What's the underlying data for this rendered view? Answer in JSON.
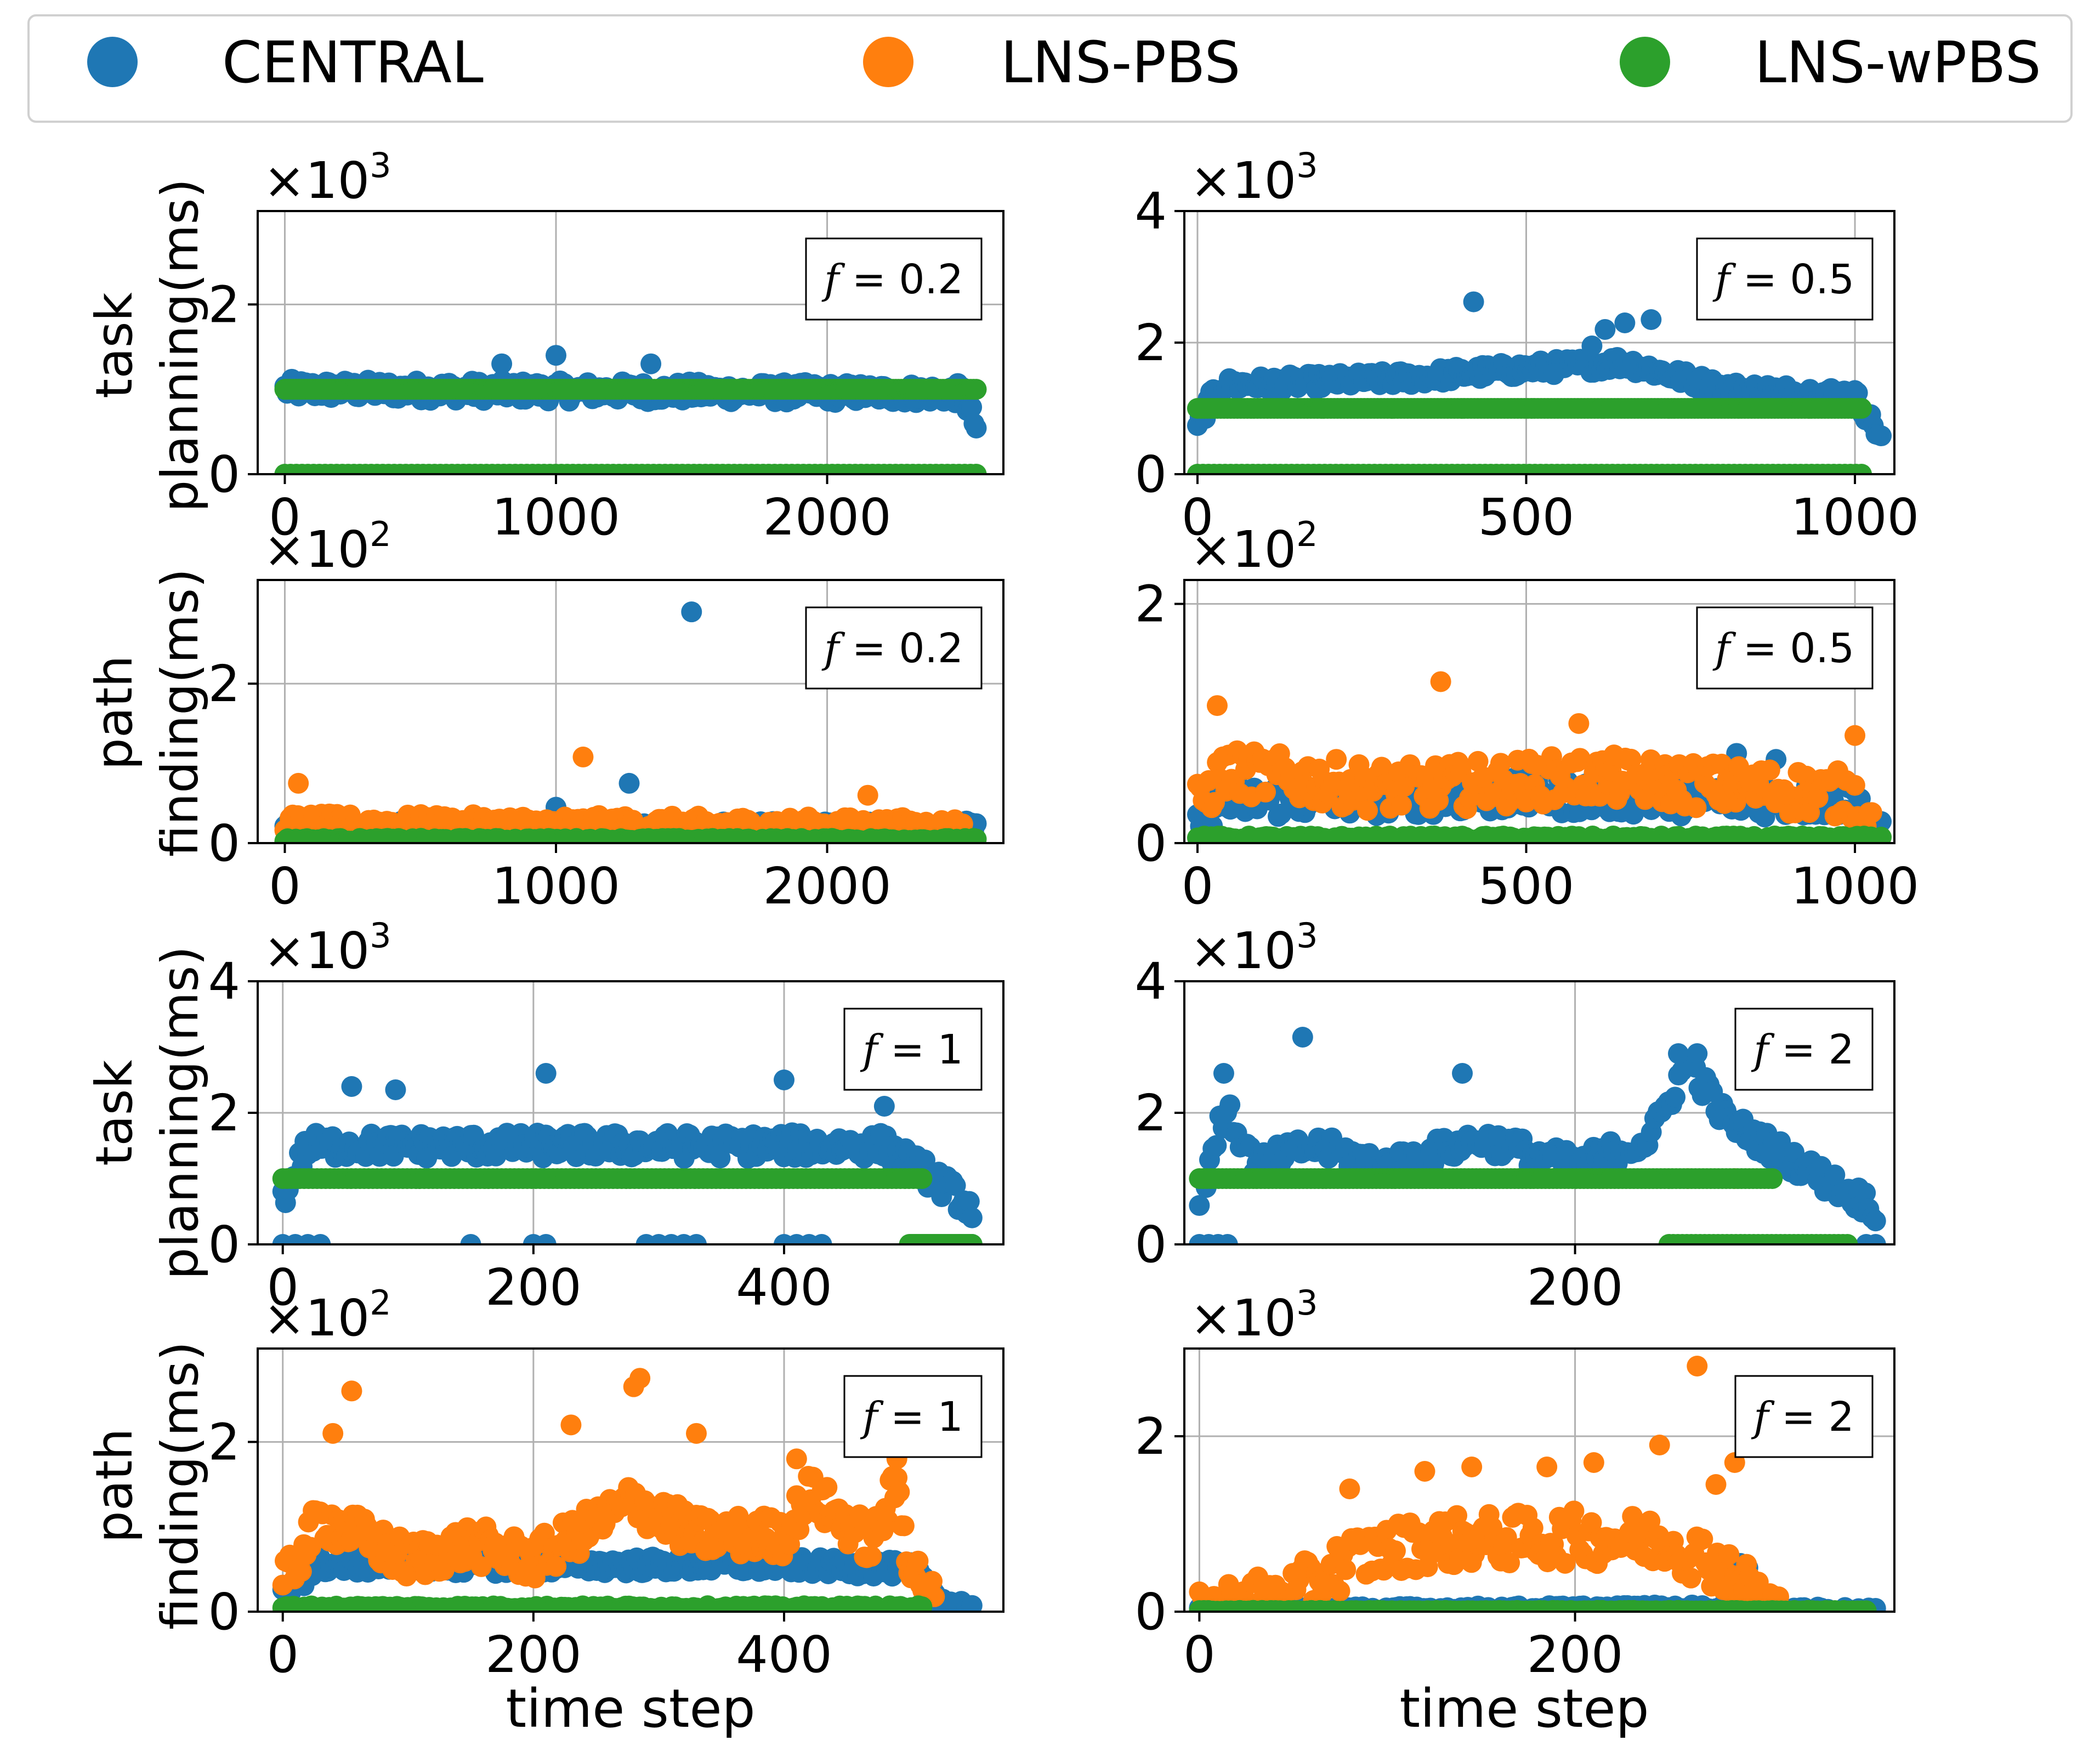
{
  "colors": {
    "central": "#1f77b4",
    "lns_pbs": "#ff7f0e",
    "lns_wpbs": "#2ca02c",
    "grid": "#b0b0b0",
    "frame": "#000000"
  },
  "legend": {
    "items": [
      {
        "label": "CENTRAL",
        "color": "#1f77b4"
      },
      {
        "label": "LNS-PBS",
        "color": "#ff7f0e"
      },
      {
        "label": "LNS-wPBS",
        "color": "#2ca02c"
      }
    ]
  },
  "rows": [
    {
      "ylabel_lines": [
        "task",
        "planning(ms)"
      ]
    },
    {
      "ylabel_lines": [
        "path",
        "finding(ms)"
      ]
    },
    {
      "ylabel_lines": [
        "task",
        "planning(ms)"
      ]
    },
    {
      "ylabel_lines": [
        "path",
        "finding(ms)"
      ]
    }
  ],
  "xlabel": "time step",
  "chart_data": [
    {
      "type": "scatter",
      "metric": "task planning (ms)",
      "annotation": "f = 0.2",
      "multiplier_base": "×10",
      "multiplier_exp": "3",
      "xlim": [
        -100,
        2650
      ],
      "xticks": [
        0,
        1000,
        2000
      ],
      "ylim": [
        0,
        3.1
      ],
      "yticks": [
        0,
        2
      ],
      "series": [
        {
          "name": "CENTRAL",
          "x_max": 2550,
          "trend": [
            [
              0,
              1.0
            ],
            [
              2500,
              0.95
            ],
            [
              2550,
              0.55
            ]
          ],
          "spread": 0.12,
          "points": 300,
          "outliers": [
            [
              1000,
              1.4
            ],
            [
              800,
              1.3
            ],
            [
              1350,
              1.3
            ]
          ]
        },
        {
          "name": "LNS-PBS",
          "x_max": 2550,
          "trend": [
            [
              0,
              1.0
            ],
            [
              2550,
              1.0
            ]
          ],
          "spread": 0.0,
          "points": 0
        },
        {
          "name": "LNS-wPBS",
          "x_max": 2550,
          "trend": [
            [
              0,
              1.0
            ],
            [
              2550,
              1.0
            ]
          ],
          "spread": 0.0,
          "points": 250,
          "zero_band": true
        }
      ]
    },
    {
      "type": "scatter",
      "metric": "task planning (ms)",
      "annotation": "f = 0.5",
      "multiplier_base": "×10",
      "multiplier_exp": "3",
      "xlim": [
        -20,
        1060
      ],
      "xticks": [
        0,
        500,
        1000
      ],
      "ylim": [
        0,
        4
      ],
      "yticks": [
        0,
        2,
        4
      ],
      "series": [
        {
          "name": "CENTRAL",
          "x_max": 1040,
          "trend": [
            [
              0,
              0.7
            ],
            [
              30,
              1.35
            ],
            [
              300,
              1.45
            ],
            [
              500,
              1.6
            ],
            [
              650,
              1.7
            ],
            [
              800,
              1.3
            ],
            [
              1000,
              1.2
            ],
            [
              1040,
              0.55
            ]
          ],
          "spread": 0.12,
          "points": 260,
          "outliers": [
            [
              420,
              2.62
            ],
            [
              650,
              2.3
            ],
            [
              690,
              2.35
            ],
            [
              620,
              2.2
            ],
            [
              600,
              1.95
            ]
          ]
        },
        {
          "name": "LNS-PBS",
          "x_max": 1040,
          "trend": [
            [
              0,
              1.0
            ],
            [
              1040,
              1.0
            ]
          ],
          "spread": 0.0,
          "points": 0
        },
        {
          "name": "LNS-wPBS",
          "x_max": 1010,
          "trend": [
            [
              0,
              1.0
            ],
            [
              1010,
              1.0
            ]
          ],
          "spread": 0.0,
          "points": 200,
          "zero_band": true
        }
      ]
    },
    {
      "type": "scatter",
      "metric": "path finding (ms)",
      "annotation": "f = 0.2",
      "multiplier_base": "×10",
      "multiplier_exp": "2",
      "xlim": [
        -100,
        2650
      ],
      "xticks": [
        0,
        1000,
        2000
      ],
      "ylim": [
        0,
        3.3
      ],
      "yticks": [
        0,
        2
      ],
      "series": [
        {
          "name": "CENTRAL",
          "x_max": 2550,
          "trend": [
            [
              0,
              0.2
            ],
            [
              2550,
              0.2
            ]
          ],
          "spread": 0.08,
          "points": 280,
          "outliers": [
            [
              1500,
              2.9
            ],
            [
              1270,
              0.75
            ],
            [
              1000,
              0.45
            ]
          ]
        },
        {
          "name": "LNS-PBS",
          "x_max": 2500,
          "trend": [
            [
              0,
              0.25
            ],
            [
              2500,
              0.2
            ]
          ],
          "spread": 0.12,
          "points": 260,
          "outliers": [
            [
              1100,
              1.08
            ],
            [
              50,
              0.75
            ],
            [
              2150,
              0.6
            ]
          ]
        },
        {
          "name": "LNS-wPBS",
          "x_max": 2550,
          "trend": [
            [
              0,
              0.04
            ],
            [
              2550,
              0.04
            ]
          ],
          "spread": 0.02,
          "points": 250
        }
      ]
    },
    {
      "type": "scatter",
      "metric": "path finding (ms)",
      "annotation": "f = 0.5",
      "multiplier_base": "×10",
      "multiplier_exp": "2",
      "xlim": [
        -20,
        1060
      ],
      "xticks": [
        0,
        500,
        1000
      ],
      "ylim": [
        0,
        2.2
      ],
      "yticks": [
        0,
        2
      ],
      "series": [
        {
          "name": "CENTRAL",
          "x_max": 1040,
          "trend": [
            [
              0,
              0.2
            ],
            [
              50,
              0.35
            ],
            [
              500,
              0.4
            ],
            [
              1000,
              0.35
            ],
            [
              1040,
              0.1
            ]
          ],
          "spread": 0.15,
          "points": 230,
          "outliers": [
            [
              820,
              0.75
            ],
            [
              880,
              0.7
            ]
          ]
        },
        {
          "name": "LNS-PBS",
          "x_max": 1030,
          "trend": [
            [
              0,
              0.3
            ],
            [
              40,
              0.6
            ],
            [
              300,
              0.45
            ],
            [
              600,
              0.55
            ],
            [
              1000,
              0.4
            ],
            [
              1030,
              0.1
            ]
          ],
          "spread": 0.2,
          "points": 240,
          "outliers": [
            [
              370,
              1.35
            ],
            [
              30,
              1.15
            ],
            [
              580,
              1.0
            ],
            [
              1000,
              0.9
            ]
          ]
        },
        {
          "name": "LNS-wPBS",
          "x_max": 1040,
          "trend": [
            [
              0,
              0.04
            ],
            [
              1040,
              0.04
            ]
          ],
          "spread": 0.02,
          "points": 200
        }
      ]
    },
    {
      "type": "scatter",
      "metric": "task planning (ms)",
      "annotation": "f = 1",
      "multiplier_base": "×10",
      "multiplier_exp": "3",
      "xlim": [
        -20,
        575
      ],
      "xticks": [
        0,
        200,
        400
      ],
      "ylim": [
        0,
        4
      ],
      "yticks": [
        0,
        2,
        4
      ],
      "series": [
        {
          "name": "CENTRAL",
          "x_max": 550,
          "trend": [
            [
              0,
              0.7
            ],
            [
              20,
              1.5
            ],
            [
              100,
              1.5
            ],
            [
              300,
              1.5
            ],
            [
              480,
              1.5
            ],
            [
              520,
              1.0
            ],
            [
              550,
              0.55
            ]
          ],
          "spread": 0.2,
          "points": 250,
          "outliers": [
            [
              55,
              2.4
            ],
            [
              90,
              2.35
            ],
            [
              210,
              2.6
            ],
            [
              400,
              2.5
            ],
            [
              480,
              2.1
            ]
          ],
          "zero_marks": [
            0,
            10,
            20,
            30,
            150,
            200,
            210,
            290,
            300,
            310,
            320,
            330,
            400,
            410,
            420,
            430,
            540,
            550
          ]
        },
        {
          "name": "LNS-PBS",
          "x_max": 510,
          "trend": [
            [
              0,
              1.0
            ],
            [
              510,
              1.0
            ]
          ],
          "spread": 0.0,
          "points": 0
        },
        {
          "name": "LNS-wPBS",
          "x_max": 510,
          "trend": [
            [
              0,
              1.0
            ],
            [
              510,
              1.0
            ]
          ],
          "spread": 0.0,
          "points": 150,
          "tail_zero": [
            500,
            550
          ]
        }
      ]
    },
    {
      "type": "scatter",
      "metric": "task planning (ms)",
      "annotation": "f = 2",
      "multiplier_base": "×10",
      "multiplier_exp": "3",
      "xlim": [
        -8,
        370
      ],
      "xticks": [
        200
      ],
      "ylim": [
        0,
        4
      ],
      "yticks": [
        0,
        2,
        4
      ],
      "series": [
        {
          "name": "CENTRAL",
          "x_max": 360,
          "trend": [
            [
              0,
              0.6
            ],
            [
              8,
              1.6
            ],
            [
              15,
              2.0
            ],
            [
              30,
              1.2
            ],
            [
              60,
              1.5
            ],
            [
              100,
              1.2
            ],
            [
              150,
              1.6
            ],
            [
              200,
              1.2
            ],
            [
              240,
              1.6
            ],
            [
              260,
              2.8
            ],
            [
              280,
              1.9
            ],
            [
              320,
              1.2
            ],
            [
              360,
              0.55
            ]
          ],
          "spread": 0.2,
          "points": 200,
          "outliers": [
            [
              55,
              3.15
            ],
            [
              140,
              2.6
            ],
            [
              13,
              2.6
            ],
            [
              255,
              2.9
            ],
            [
              265,
              2.9
            ]
          ],
          "zero_marks": [
            0,
            5,
            10,
            15,
            355,
            360
          ]
        },
        {
          "name": "LNS-PBS",
          "x_max": 300,
          "trend": [
            [
              0,
              1.0
            ],
            [
              300,
              1.0
            ]
          ],
          "spread": 0.0,
          "points": 0,
          "outliers": [
            [
              260,
              1.0
            ],
            [
              285,
              1.0
            ]
          ]
        },
        {
          "name": "LNS-wPBS",
          "x_max": 305,
          "trend": [
            [
              0,
              1.0
            ],
            [
              305,
              1.0
            ]
          ],
          "spread": 0.0,
          "points": 150,
          "tail_zero": [
            250,
            345
          ]
        }
      ]
    },
    {
      "type": "scatter",
      "metric": "path finding (ms)",
      "annotation": "f = 1",
      "multiplier_base": "×10",
      "multiplier_exp": "2",
      "xlim": [
        -20,
        575
      ],
      "xticks": [
        0,
        200,
        400
      ],
      "ylim": [
        0,
        3.1
      ],
      "yticks": [
        0,
        2
      ],
      "series": [
        {
          "name": "CENTRAL",
          "x_max": 550,
          "trend": [
            [
              0,
              0.2
            ],
            [
              30,
              0.55
            ],
            [
              200,
              0.55
            ],
            [
              400,
              0.55
            ],
            [
              500,
              0.5
            ],
            [
              530,
              0.1
            ],
            [
              550,
              0.02
            ]
          ],
          "spread": 0.1,
          "points": 260
        },
        {
          "name": "LNS-PBS",
          "x_max": 520,
          "trend": [
            [
              0,
              0.3
            ],
            [
              30,
              1.1
            ],
            [
              60,
              0.9
            ],
            [
              100,
              0.6
            ],
            [
              150,
              0.8
            ],
            [
              200,
              0.6
            ],
            [
              280,
              1.3
            ],
            [
              330,
              0.9
            ],
            [
              400,
              0.9
            ],
            [
              420,
              1.4
            ],
            [
              470,
              0.8
            ],
            [
              490,
              1.5
            ],
            [
              500,
              0.6
            ],
            [
              520,
              0.1
            ]
          ],
          "spread": 0.25,
          "points": 280,
          "outliers": [
            [
              55,
              2.6
            ],
            [
              285,
              2.75
            ],
            [
              280,
              2.65
            ],
            [
              230,
              2.2
            ],
            [
              330,
              2.1
            ],
            [
              410,
              1.8
            ],
            [
              490,
              1.8
            ],
            [
              40,
              2.1
            ]
          ]
        },
        {
          "name": "LNS-wPBS",
          "x_max": 510,
          "trend": [
            [
              0,
              0.05
            ],
            [
              510,
              0.05
            ]
          ],
          "spread": 0.02,
          "points": 180
        }
      ]
    },
    {
      "type": "scatter",
      "metric": "path finding (ms)",
      "annotation": "f = 2",
      "multiplier_base": "×10",
      "multiplier_exp": "3",
      "xlim": [
        -8,
        370
      ],
      "xticks": [
        0,
        200
      ],
      "ylim": [
        0,
        3
      ],
      "yticks": [
        0,
        2
      ],
      "series": [
        {
          "name": "CENTRAL",
          "x_max": 360,
          "trend": [
            [
              0,
              0.02
            ],
            [
              280,
              0.05
            ],
            [
              290,
              0.3
            ],
            [
              300,
              0.05
            ],
            [
              360,
              0.01
            ]
          ],
          "spread": 0.03,
          "points": 200,
          "outliers": [
            [
              288,
              0.55
            ],
            [
              292,
              0.5
            ],
            [
              285,
              0.45
            ]
          ]
        },
        {
          "name": "LNS-PBS",
          "x_max": 310,
          "trend": [
            [
              0,
              0.02
            ],
            [
              50,
              0.2
            ],
            [
              80,
              0.6
            ],
            [
              120,
              0.8
            ],
            [
              200,
              0.85
            ],
            [
              250,
              0.8
            ],
            [
              280,
              0.5
            ],
            [
              300,
              0.1
            ],
            [
              310,
              0.03
            ]
          ],
          "spread": 0.3,
          "points": 200,
          "outliers": [
            [
              265,
              2.8
            ],
            [
              245,
              1.9
            ],
            [
              285,
              1.7
            ],
            [
              275,
              1.45
            ],
            [
              120,
              1.6
            ],
            [
              145,
              1.65
            ],
            [
              185,
              1.65
            ],
            [
              210,
              1.7
            ],
            [
              80,
              1.4
            ]
          ]
        },
        {
          "name": "LNS-wPBS",
          "x_max": 355,
          "trend": [
            [
              0,
              0.01
            ],
            [
              355,
              0.01
            ]
          ],
          "spread": 0.005,
          "points": 150
        }
      ]
    }
  ]
}
